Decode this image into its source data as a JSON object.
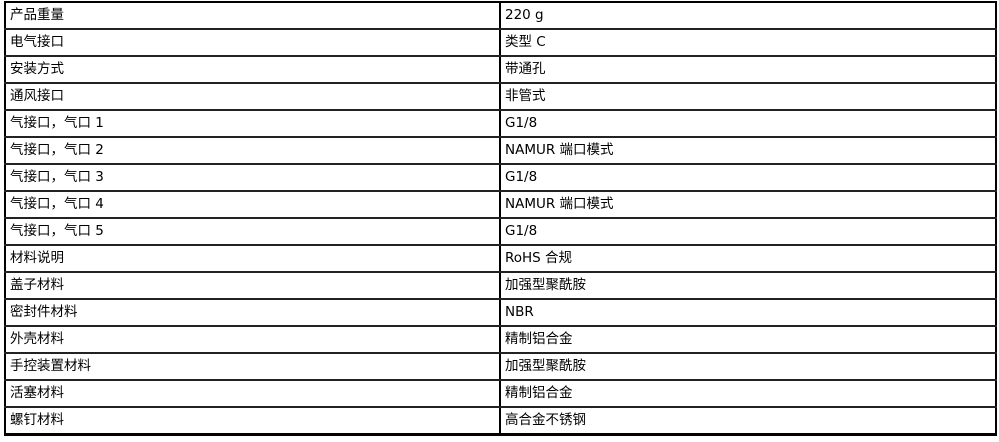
{
  "rows": [
    {
      "label": "产品重量",
      "value": "220 g"
    },
    {
      "label": "电气接口",
      "value": "类型 C"
    },
    {
      "label": "安装方式",
      "value": "带通孔"
    },
    {
      "label": "通风接口",
      "value": "非管式"
    },
    {
      "label": "气接口，气口 1",
      "value": "G1/8"
    },
    {
      "label": "气接口，气口 2",
      "value": "NAMUR 端口模式"
    },
    {
      "label": "气接口，气口 3",
      "value": "G1/8"
    },
    {
      "label": "气接口，气口 4",
      "value": "NAMUR 端口模式"
    },
    {
      "label": "气接口，气口 5",
      "value": "G1/8"
    },
    {
      "label": "材料说明",
      "value": "RoHS 合规"
    },
    {
      "label": "盖子材料",
      "value": "加强型聚酰胺"
    },
    {
      "label": "密封件材料",
      "value": "NBR"
    },
    {
      "label": "外壳材料",
      "value": "精制铝合金"
    },
    {
      "label": "手控装置材料",
      "value": "加强型聚酰胺"
    },
    {
      "label": "活塞材料",
      "value": "精制铝合金"
    },
    {
      "label": "螺钉材料",
      "value": "高合金不锈钢"
    }
  ]
}
